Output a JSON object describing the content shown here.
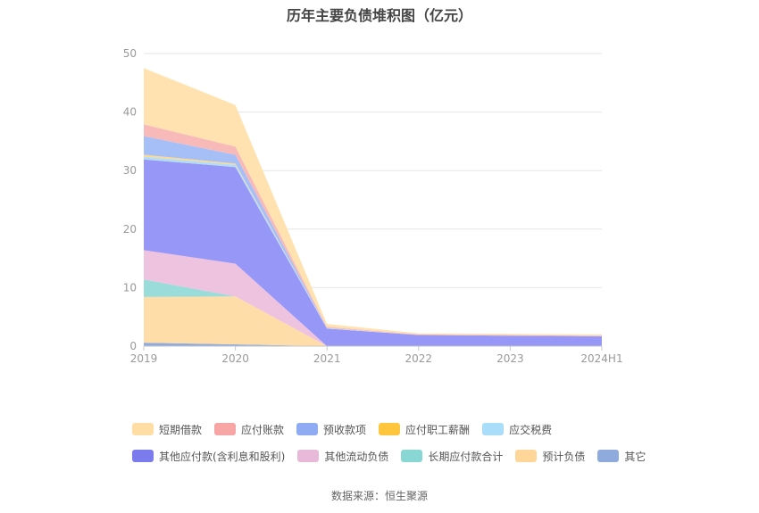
{
  "title": "历年主要负债堆积图（亿元）",
  "source": "数据来源：恒生聚源",
  "chart_data": {
    "type": "area",
    "stacked": true,
    "categories": [
      "2019",
      "2020",
      "2021",
      "2022",
      "2023",
      "2024H1"
    ],
    "ylim": [
      0,
      50
    ],
    "yticks": [
      0,
      10,
      20,
      30,
      40,
      50
    ],
    "grid": true,
    "legend_position": "bottom",
    "series": [
      {
        "name": "其它",
        "color": "#8faadc",
        "values": [
          0.6,
          0.3,
          0.0,
          0.0,
          0.0,
          0.0
        ]
      },
      {
        "name": "预计负债",
        "color": "#ffdda8",
        "values": [
          7.8,
          8.2,
          0.0,
          0.0,
          0.0,
          0.0
        ]
      },
      {
        "name": "长期应付款合计",
        "color": "#99dcd9",
        "values": [
          3.0,
          0.0,
          0.0,
          0.0,
          0.0,
          0.0
        ]
      },
      {
        "name": "其他流动负债",
        "color": "#eec3e0",
        "values": [
          5.0,
          5.6,
          0.0,
          0.0,
          0.0,
          0.0
        ]
      },
      {
        "name": "其他应付款(含利息和股利)",
        "color": "#9797f7",
        "values": [
          15.5,
          16.5,
          3.0,
          1.9,
          1.8,
          1.7
        ]
      },
      {
        "name": "应交税费",
        "color": "#b3dcf9",
        "values": [
          0.5,
          0.4,
          0.1,
          0.0,
          0.0,
          0.0
        ]
      },
      {
        "name": "应付职工薪酬",
        "color": "#ffd98a",
        "values": [
          0.3,
          0.2,
          0.0,
          0.0,
          0.0,
          0.0
        ]
      },
      {
        "name": "预收款项",
        "color": "#a7bff7",
        "values": [
          3.2,
          1.5,
          0.0,
          0.0,
          0.0,
          0.0
        ]
      },
      {
        "name": "应付账款",
        "color": "#f8b9b9",
        "values": [
          2.0,
          1.4,
          0.2,
          0.1,
          0.1,
          0.1
        ]
      },
      {
        "name": "短期借款",
        "color": "#ffe2b0",
        "values": [
          9.6,
          7.1,
          0.5,
          0.2,
          0.2,
          0.2
        ]
      }
    ],
    "legend": [
      [
        {
          "name": "短期借款",
          "color": "#ffdea6"
        },
        {
          "name": "应付账款",
          "color": "#f8a5a5"
        },
        {
          "name": "预收款项",
          "color": "#8fabf4"
        },
        {
          "name": "应付职工薪酬",
          "color": "#ffc53d"
        },
        {
          "name": "应交税费",
          "color": "#a9ddf9"
        }
      ],
      [
        {
          "name": "其他应付款(含利息和股利)",
          "color": "#7b7bee"
        },
        {
          "name": "其他流动负债",
          "color": "#e8b9d9"
        },
        {
          "name": "长期应付款合计",
          "color": "#88d7d5"
        },
        {
          "name": "预计负债",
          "color": "#ffd69a"
        },
        {
          "name": "其它",
          "color": "#8faadc"
        }
      ]
    ]
  }
}
